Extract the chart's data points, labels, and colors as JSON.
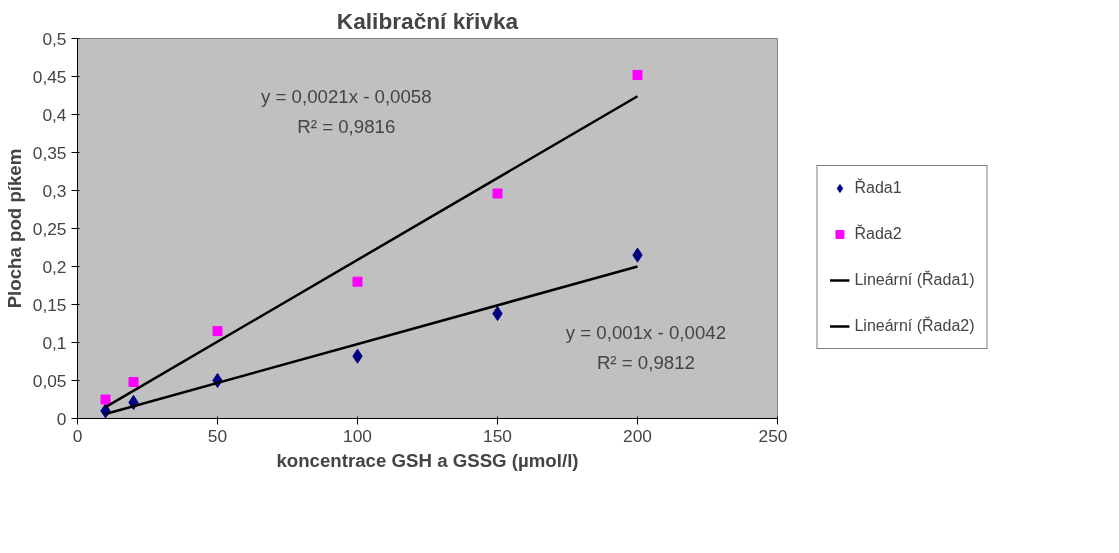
{
  "chart_data": {
    "type": "scatter",
    "title": "Kalibrační křivka",
    "xlabel": "koncentrace GSH a GSSG (µmol/l)",
    "ylabel": "Plocha pod píkem",
    "xlim": [
      0,
      250
    ],
    "xticks": [
      0,
      50,
      100,
      150,
      200,
      250
    ],
    "ylim": [
      0,
      0.5
    ],
    "yticks": [
      0,
      {
        "value": 0.05,
        "label": "0,05"
      },
      {
        "value": 0.1,
        "label": "0,1"
      },
      {
        "value": 0.15,
        "label": "0,15"
      },
      {
        "value": 0.2,
        "label": "0,2"
      },
      {
        "value": 0.25,
        "label": "0,25"
      },
      {
        "value": 0.3,
        "label": "0,3"
      },
      {
        "value": 0.35,
        "label": "0,35"
      },
      {
        "value": 0.4,
        "label": "0,4"
      },
      {
        "value": 0.45,
        "label": "0,45"
      },
      {
        "value": 0.5,
        "label": "0,5"
      }
    ],
    "grid": false,
    "legend": "right",
    "x": [
      10,
      20,
      50,
      100,
      150,
      200
    ],
    "series": [
      {
        "name": "Řada1",
        "color": "#000080",
        "marker": "diamond",
        "values": [
          0.01,
          0.021,
          0.05,
          0.082,
          0.138,
          0.215
        ]
      },
      {
        "name": "Řada2",
        "color": "#ff00ff",
        "marker": "square",
        "values": [
          0.025,
          0.048,
          0.115,
          0.18,
          0.296,
          0.452
        ]
      },
      {
        "name": "Lineární (Řada1)",
        "type": "line",
        "color": "#000000",
        "marker": "none",
        "line_style": "solid",
        "values": [
          0.006,
          null,
          null,
          null,
          null,
          0.2
        ]
      },
      {
        "name": "Lineární (Řada2)",
        "type": "line",
        "color": "#000000",
        "marker": "none",
        "line_style": "solid",
        "values": [
          0.015,
          null,
          null,
          null,
          null,
          0.424
        ]
      }
    ],
    "annotations": [
      "y = 0,0021x - 0,0058",
      "R² = 0,9816",
      "y = 0,001x - 0,0042",
      "R² = 0,9812"
    ]
  }
}
